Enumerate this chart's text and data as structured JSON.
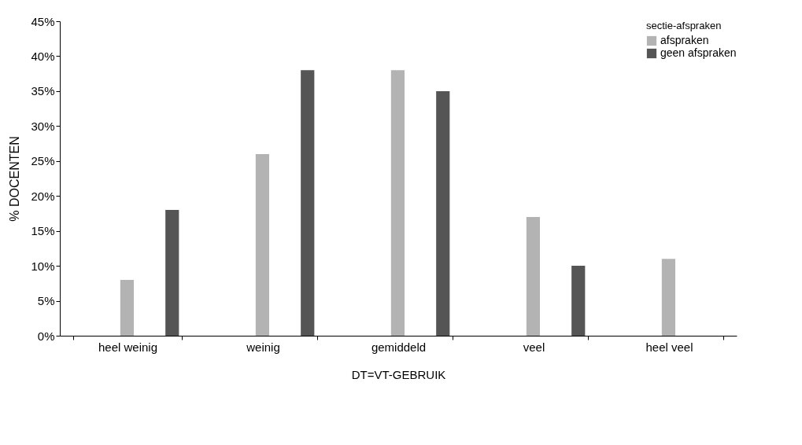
{
  "chart_data": {
    "type": "bar",
    "xlabel": "DT=VT-GEBRUIK",
    "ylabel": "% DOCENTEN",
    "legend_title": "sectie-afspraken",
    "legend": "top right",
    "grid": false,
    "categories": [
      "heel weinig",
      "weinig",
      "gemiddeld",
      "veel",
      "heel veel"
    ],
    "series": [
      {
        "name": "afspraken",
        "color": "#b3b3b3",
        "values": [
          8,
          26,
          38,
          17,
          11
        ]
      },
      {
        "name": "geen afspraken",
        "color": "#555555",
        "values": [
          18,
          38,
          35,
          10,
          0
        ]
      }
    ],
    "ylim": [
      0,
      45
    ],
    "yticks": [
      {
        "value": 0,
        "label": "0%"
      },
      {
        "value": 5,
        "label": "5%"
      },
      {
        "value": 10,
        "label": "10%"
      },
      {
        "value": 15,
        "label": "15%"
      },
      {
        "value": 20,
        "label": "20%"
      },
      {
        "value": 25,
        "label": "25%"
      },
      {
        "value": 30,
        "label": "30%"
      },
      {
        "value": 35,
        "label": "35%"
      },
      {
        "value": 40,
        "label": "40%"
      },
      {
        "value": 45,
        "label": "45%"
      }
    ]
  }
}
